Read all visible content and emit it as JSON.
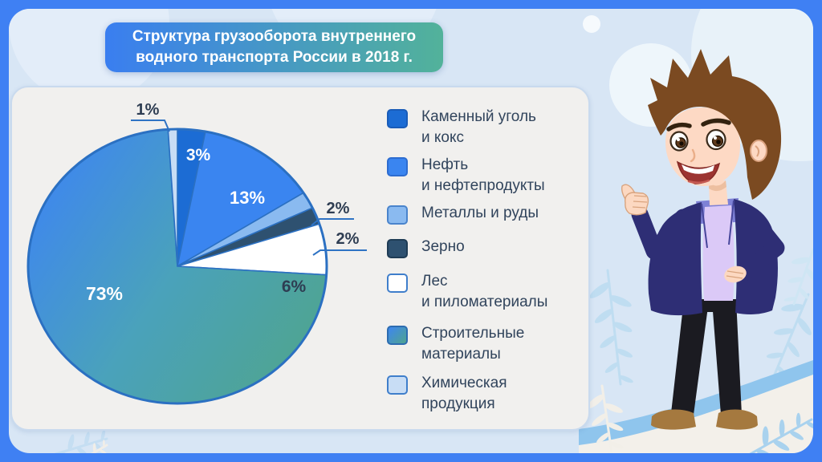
{
  "slide": {
    "frame_color": "#3f80f3",
    "background_color": "#d8e6f5",
    "card_color": "#f1f0ee"
  },
  "title": {
    "line1": "Структура грузооборота внутреннего",
    "line2": "водного транспорта России в 2018 г.",
    "full": "Структура грузооборота внутреннего водного транспорта России в 2018 г.",
    "gradient": [
      "#3a7ef0",
      "#52b29a"
    ]
  },
  "chart_data": {
    "type": "pie",
    "title": "Структура грузооборота внутреннего водного транспорта России в 2018 г.",
    "unit": "%",
    "total": 100,
    "direction": "clockwise",
    "start_angle_deg": 0,
    "legend_position": "right",
    "outline_color": "#2b70c2",
    "callout_line_color": "#2f73c4",
    "label_colors": {
      "inside_light": "#ffffff",
      "dark": "#2e3d52"
    },
    "slices": [
      {
        "name": "coal",
        "label": "Каменный уголь и кокс",
        "legend_label": "Каменный уголь\nи кокс",
        "value": 3,
        "value_label": "3%",
        "color": "#1c6cd4",
        "swatch_border": "#1a5cb8"
      },
      {
        "name": "oil",
        "label": "Нефть и нефтепродукты",
        "legend_label": "Нефть\nи нефтепродукты",
        "value": 13,
        "value_label": "13%",
        "color": "#3a85f0",
        "swatch_border": "#2d6cd0"
      },
      {
        "name": "metals",
        "label": "Металлы и руды",
        "legend_label": "Металлы и руды",
        "value": 2,
        "value_label": "2%",
        "color": "#8abaf0",
        "swatch_border": "#4a84cc"
      },
      {
        "name": "grain",
        "label": "Зерно",
        "legend_label": "Зерно",
        "value": 2,
        "value_label": "2%",
        "color": "#2e5170",
        "swatch_border": "#1f3c55"
      },
      {
        "name": "timber",
        "label": "Лес и пиломатериалы",
        "legend_label": "Лес\nи пиломатериалы",
        "value": 6,
        "value_label": "6%",
        "color": "#ffffff",
        "swatch_border": "#3f7ecb"
      },
      {
        "name": "construction",
        "label": "Строительные материалы",
        "legend_label": "Строительные\nматериалы",
        "value": 73,
        "value_label": "73%",
        "color": "#3e86f0",
        "gradient": [
          "#3e86f0",
          "#4aa2bb",
          "#4fa48f"
        ],
        "swatch_border": "#2d6cb0"
      },
      {
        "name": "chemicals",
        "label": "Химическая продукция",
        "legend_label": "Химическая\nпродукция",
        "value": 1,
        "value_label": "1%",
        "color": "#c8ddf5",
        "swatch_border": "#3f7ecb"
      }
    ]
  },
  "illustration": {
    "character": "man-thumbs-up",
    "decor": [
      "leaf-fronds",
      "snow-hill",
      "wave-band",
      "soft-circles"
    ]
  }
}
